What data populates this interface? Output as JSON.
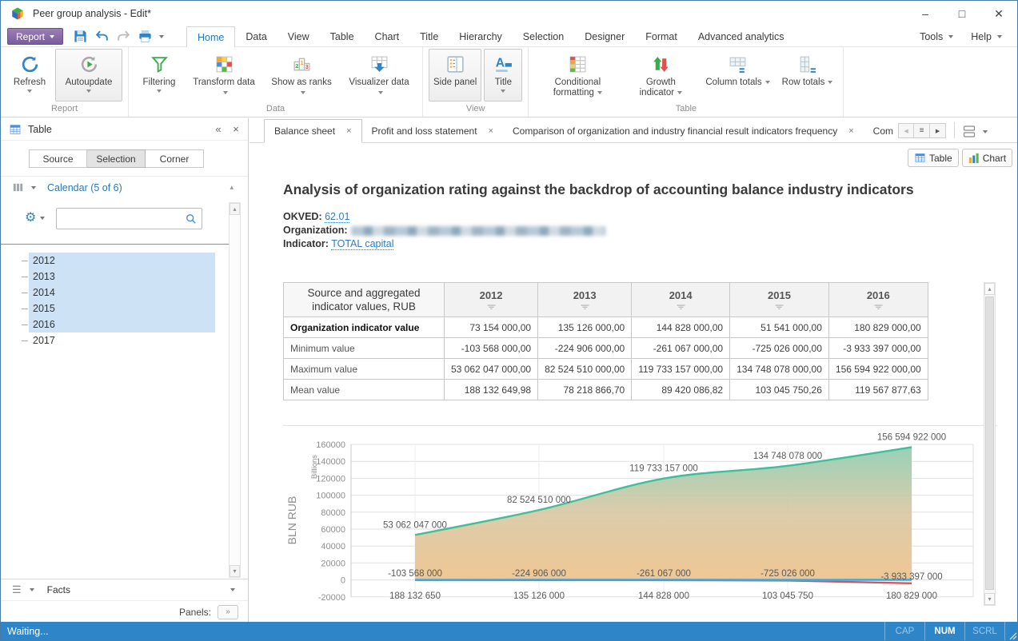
{
  "titlebar": {
    "title": "Peer group analysis - Edit*",
    "controls": {
      "minimize": "–",
      "maximize": "□",
      "close": "✕"
    }
  },
  "glyphs": {
    "caret_down": "▾",
    "caret_up": "▴",
    "collapse": "«",
    "close": "×",
    "nav_left": "◀",
    "nav_right": "▶",
    "menu": "≡",
    "panels_expand": "»",
    "gear": "⚙",
    "hamburger": "☰"
  },
  "menubar": {
    "report_button": "Report",
    "tabs": [
      {
        "label": "Home",
        "active": true
      },
      {
        "label": "Data"
      },
      {
        "label": "View"
      },
      {
        "label": "Table"
      },
      {
        "label": "Chart"
      },
      {
        "label": "Title"
      },
      {
        "label": "Hierarchy"
      },
      {
        "label": "Selection"
      },
      {
        "label": "Designer"
      },
      {
        "label": "Format"
      },
      {
        "label": "Advanced analytics"
      }
    ],
    "right_menus": [
      {
        "label": "Tools"
      },
      {
        "label": "Help"
      }
    ]
  },
  "ribbon": {
    "groups": [
      {
        "label": "Report",
        "buttons": [
          {
            "label": "Refresh",
            "icon": "refresh-icon",
            "dropdown": true,
            "pressed": false
          },
          {
            "label": "Autoupdate",
            "icon": "autoupdate-icon",
            "dropdown": true,
            "pressed": true
          }
        ]
      },
      {
        "label": "Data",
        "buttons": [
          {
            "label": "Filtering",
            "icon": "filter-icon",
            "dropdown": true
          },
          {
            "label": "Transform data",
            "icon": "transform-data-icon",
            "dropdown": true
          },
          {
            "label": "Show as ranks",
            "icon": "ranks-icon",
            "dropdown": true
          },
          {
            "label": "Visualizer data",
            "icon": "visualizer-data-icon",
            "dropdown": true
          }
        ]
      },
      {
        "label": "View",
        "buttons": [
          {
            "label": "Side panel",
            "icon": "side-panel-icon",
            "pressed": true
          },
          {
            "label": "Title",
            "icon": "title-icon",
            "dropdown": true,
            "pressed": true
          }
        ]
      },
      {
        "label": "Table",
        "buttons": [
          {
            "label": "Conditional formatting",
            "icon": "conditional-formatting-icon",
            "dropdown": true
          },
          {
            "label": "Growth indicator",
            "icon": "growth-indicator-icon",
            "dropdown": true
          },
          {
            "label": "Column totals",
            "icon": "column-totals-icon",
            "dropdown": true
          },
          {
            "label": "Row totals",
            "icon": "row-totals-icon",
            "dropdown": true
          }
        ]
      }
    ]
  },
  "side_panel": {
    "title": "Table",
    "title_icon": "table-grid-icon",
    "tabs": [
      {
        "label": "Source"
      },
      {
        "label": "Selection",
        "active": true
      },
      {
        "label": "Corner"
      }
    ],
    "dimension_label": "Calendar (5 of 6)",
    "search_placeholder": "",
    "years": [
      {
        "label": "2012",
        "selected": true
      },
      {
        "label": "2013",
        "selected": true
      },
      {
        "label": "2014",
        "selected": true
      },
      {
        "label": "2015",
        "selected": true
      },
      {
        "label": "2016",
        "selected": true
      },
      {
        "label": "2017",
        "selected": false
      }
    ],
    "facts_label": "Facts",
    "panels_label": "Panels:"
  },
  "doc_tabs": [
    {
      "label": "Balance sheet",
      "active": true
    },
    {
      "label": "Profit and loss statement"
    },
    {
      "label": "Comparison of organization and industry financial result indicators frequency"
    },
    {
      "label": "Com"
    }
  ],
  "view_toggle": {
    "table_label": "Table",
    "chart_label": "Chart"
  },
  "report": {
    "title": "Analysis of organization rating against the backdrop of accounting balance industry indicators",
    "okved_label": "OKVED:",
    "okved_value": "62.01",
    "organization_label": "Organization:",
    "organization_redacted": true,
    "indicator_label": "Indicator:",
    "indicator_value": "TOTAL capital"
  },
  "data_table": {
    "corner": "Source and aggregated indicator values, RUB",
    "columns": [
      "2012",
      "2013",
      "2014",
      "2015",
      "2016"
    ],
    "rows": [
      {
        "label": "Organization indicator value",
        "values": [
          "73 154 000,00",
          "135 126 000,00",
          "144 828 000,00",
          "51 541 000,00",
          "180 829 000,00"
        ]
      },
      {
        "label": "Minimum value",
        "values": [
          "-103 568 000,00",
          "-224 906 000,00",
          "-261 067 000,00",
          "-725 026 000,00",
          "-3 933 397 000,00"
        ]
      },
      {
        "label": "Maximum value",
        "values": [
          "53 062 047 000,00",
          "82 524 510 000,00",
          "119 733 157 000,00",
          "134 748 078 000,00",
          "156 594 922 000,00"
        ]
      },
      {
        "label": "Mean value",
        "values": [
          "188 132 649,98",
          "78 218 866,70",
          "89 420 086,82",
          "103 045 750,26",
          "119 567 877,63"
        ]
      }
    ]
  },
  "chart_data": {
    "type": "area",
    "x": [
      "2012",
      "2013",
      "2014",
      "2015",
      "2016"
    ],
    "ylabel": "BLN RUB",
    "y_unit_label": "Billions",
    "ylim": [
      -20000,
      160000
    ],
    "ytick_step": 20000,
    "yticks": [
      160000,
      140000,
      120000,
      100000,
      80000,
      60000,
      40000,
      20000,
      0,
      -20000
    ],
    "grid": true,
    "legend": "none",
    "series": [
      {
        "name": "Maximum value",
        "type": "area",
        "color": "#3fbf9d",
        "values_mln": [
          53062.047,
          82524.51,
          119733.157,
          134748.078,
          156594.922
        ],
        "point_labels": [
          "53 062 047 000",
          "82 524 510 000",
          "119 733 157 000",
          "134 748 078 000",
          "156 594 922 000"
        ]
      },
      {
        "name": "Organization indicator value",
        "type": "line",
        "color": "#47a7d8",
        "values_mln": [
          73.154,
          135.126,
          144.828,
          51.541,
          180.829
        ]
      },
      {
        "name": "Minimum value",
        "type": "line",
        "color": "#d85555",
        "values_mln": [
          -103.568,
          -224.906,
          -261.067,
          -725.026,
          -3933.397
        ],
        "point_labels": [
          "-103 568 000",
          "-224 906 000",
          "-261 067 000",
          "-725 026 000",
          "-3 933 397 000"
        ]
      }
    ],
    "baseline_labels": [
      "188 132 650",
      "135 126 000",
      "144 828 000",
      "103 045 750",
      "180 829 000"
    ]
  },
  "status_bar": {
    "left": "Waiting...",
    "indicators": [
      {
        "label": "CAP",
        "active": false
      },
      {
        "label": "NUM",
        "active": true
      },
      {
        "label": "SCRL",
        "active": false
      }
    ]
  }
}
